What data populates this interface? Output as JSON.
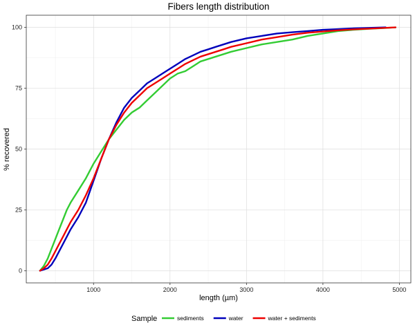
{
  "chart_data": {
    "type": "line",
    "title": "Fibers length distribution",
    "xlabel": "length (µm)",
    "ylabel": "% recovered",
    "xlim": [
      120,
      5150
    ],
    "ylim": [
      -5,
      105
    ],
    "x_ticks": [
      1000,
      2000,
      3000,
      4000,
      5000
    ],
    "x_tick_labels": [
      "1000",
      "2000",
      "3000",
      "4000",
      "5000"
    ],
    "y_ticks": [
      0,
      25,
      50,
      75,
      100
    ],
    "y_tick_labels": [
      "0",
      "25",
      "50",
      "75",
      "100"
    ],
    "grid": true,
    "legend_title": "Sample",
    "legend_position": "bottom",
    "series": [
      {
        "name": "sediments",
        "color": "#33cc33",
        "x": [
          300,
          350,
          400,
          450,
          500,
          550,
          600,
          650,
          700,
          800,
          900,
          1000,
          1100,
          1200,
          1300,
          1400,
          1500,
          1600,
          1700,
          1800,
          1900,
          2000,
          2100,
          2200,
          2300,
          2400,
          2500,
          2600,
          2700,
          2800,
          3000,
          3200,
          3400,
          3600,
          3800,
          4000,
          4200,
          4400,
          4600,
          4800,
          4950
        ],
        "y": [
          0,
          2,
          5,
          9,
          13,
          17,
          21,
          25,
          28,
          33,
          38,
          44,
          49,
          54,
          58,
          62,
          65,
          67,
          70,
          73,
          76,
          79,
          81,
          82,
          84,
          86,
          87,
          88,
          89,
          90,
          91.5,
          93,
          94,
          95,
          96.5,
          97.5,
          98.5,
          99,
          99.4,
          99.7,
          100
        ]
      },
      {
        "name": "water",
        "color": "#0000bb",
        "x": [
          300,
          350,
          400,
          450,
          500,
          550,
          600,
          650,
          700,
          800,
          900,
          1000,
          1100,
          1200,
          1300,
          1400,
          1500,
          1600,
          1700,
          1800,
          1900,
          2000,
          2100,
          2200,
          2300,
          2400,
          2500,
          2600,
          2700,
          2800,
          3000,
          3200,
          3400,
          3600,
          3800,
          4000,
          4200,
          4400,
          4600,
          4820
        ],
        "y": [
          0,
          0.5,
          1,
          2.5,
          5,
          8,
          11,
          14,
          17,
          22,
          28,
          37,
          46,
          54,
          61,
          67,
          71,
          74,
          77,
          79,
          81,
          83,
          85,
          87,
          88.5,
          90,
          91,
          92,
          93,
          94,
          95.5,
          96.5,
          97.5,
          98,
          98.5,
          99,
          99.3,
          99.6,
          99.8,
          100
        ]
      },
      {
        "name": "water + sediments",
        "color": "#ee0000",
        "x": [
          300,
          350,
          400,
          450,
          500,
          550,
          600,
          650,
          700,
          800,
          900,
          1000,
          1100,
          1200,
          1300,
          1400,
          1500,
          1600,
          1700,
          1800,
          1900,
          2000,
          2100,
          2200,
          2300,
          2400,
          2500,
          2600,
          2700,
          2800,
          3000,
          3200,
          3400,
          3600,
          3800,
          4000,
          4200,
          4400,
          4600,
          4950
        ],
        "y": [
          0,
          1,
          2.5,
          5,
          8,
          11,
          14,
          17,
          20,
          25,
          31,
          38,
          46,
          54,
          60,
          65,
          69,
          72,
          75,
          77,
          79,
          81,
          83,
          85,
          86.5,
          88,
          89,
          90,
          91,
          92,
          93.5,
          95,
          96,
          97,
          97.8,
          98.3,
          98.8,
          99.2,
          99.5,
          100
        ]
      }
    ]
  }
}
